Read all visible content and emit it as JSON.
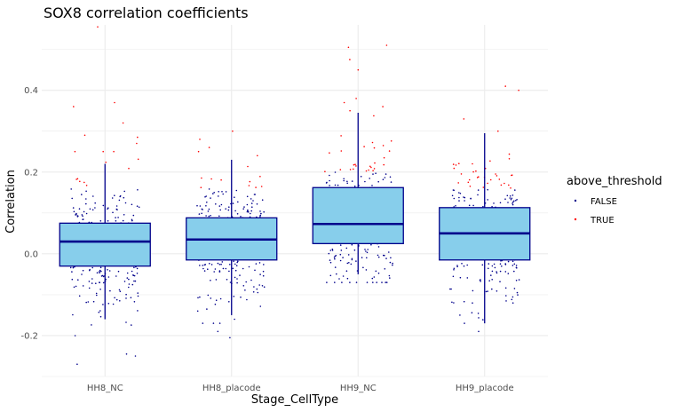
{
  "chart_data": {
    "type": "boxplot",
    "title": "SOX8 correlation coefficients",
    "xlabel": "Stage_CellType",
    "ylabel": "Correlation",
    "ylim": [
      -0.3,
      0.56
    ],
    "yticks": [
      -0.2,
      0.0,
      0.2,
      0.4
    ],
    "ytick_labels": [
      "-0.2",
      "0.0",
      "0.2",
      "0.4"
    ],
    "grid": true,
    "categories": [
      "HH8_NC",
      "HH8_placode",
      "HH9_NC",
      "HH9_placode"
    ],
    "boxes": [
      {
        "category": "HH8_NC",
        "whisker_low": -0.16,
        "q1": -0.03,
        "median": 0.03,
        "q3": 0.075,
        "whisker_high": 0.22
      },
      {
        "category": "HH8_placode",
        "whisker_low": -0.15,
        "q1": -0.015,
        "median": 0.035,
        "q3": 0.088,
        "whisker_high": 0.23
      },
      {
        "category": "HH9_NC",
        "whisker_low": -0.05,
        "q1": 0.025,
        "median": 0.073,
        "q3": 0.162,
        "whisker_high": 0.345
      },
      {
        "category": "HH9_placode",
        "whisker_low": -0.17,
        "q1": -0.015,
        "median": 0.05,
        "q3": 0.113,
        "whisker_high": 0.295
      }
    ],
    "jitter": {
      "threshold_by_category": [
        0.16,
        0.16,
        0.2,
        0.16
      ],
      "counts": [
        310,
        310,
        340,
        330
      ],
      "sd": [
        0.08,
        0.075,
        0.08,
        0.085
      ],
      "center": [
        0.02,
        0.03,
        0.085,
        0.045
      ],
      "outliers": [
        {
          "category": "HH8_NC",
          "values": [
            0.555,
            0.37,
            0.36,
            0.32,
            0.29,
            0.285,
            0.27,
            0.25,
            -0.2,
            -0.245,
            -0.25,
            -0.27
          ]
        },
        {
          "category": "HH8_placode",
          "values": [
            0.3,
            0.28,
            0.25,
            0.24,
            -0.19,
            -0.205,
            -0.16
          ]
        },
        {
          "category": "HH9_NC",
          "values": [
            0.51,
            0.505,
            0.475,
            0.45,
            0.38,
            0.37,
            0.36,
            0.35
          ]
        },
        {
          "category": "HH9_placode",
          "values": [
            0.41,
            0.4,
            0.33,
            0.3,
            -0.17,
            -0.15
          ]
        }
      ]
    },
    "colors": {
      "box_fill": "#87ceeb",
      "box_stroke": "#00008b",
      "points_false": "#00008b",
      "points_true": "#ff0000",
      "grid": "#ebebeb"
    },
    "legend": {
      "title": "above_threshold",
      "position": "right",
      "entries": [
        {
          "label": "FALSE",
          "color": "#00008b"
        },
        {
          "label": "TRUE",
          "color": "#ff0000"
        }
      ]
    }
  }
}
